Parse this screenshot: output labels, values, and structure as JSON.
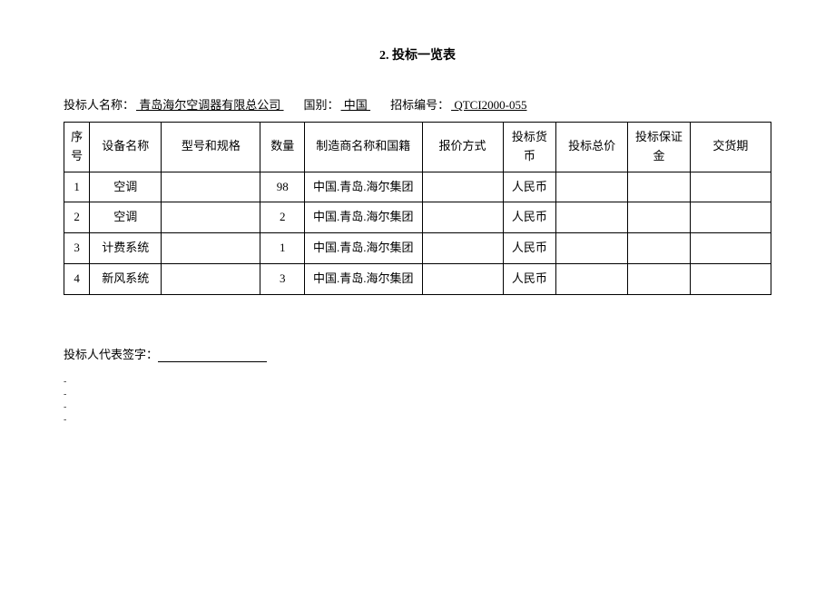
{
  "title": "2. 投标一览表",
  "info": {
    "bidder_label": "投标人名称：",
    "bidder_name": "  青岛海尔空调器有限总公司  ",
    "country_label": "国别：",
    "country": "  中国  ",
    "bidno_label": "招标编号：",
    "bidno": "  QTCI2000-055  "
  },
  "table": {
    "headers": {
      "seq": "序号",
      "name": "设备名称",
      "model": "型号和规格",
      "qty": "数量",
      "mfr": "制造商名称和国籍",
      "quote": "报价方式",
      "curr": "投标货币",
      "total": "投标总价",
      "deposit": "投标保证金",
      "delivery": "交货期"
    },
    "rows": [
      {
        "seq": "1",
        "name": "空调",
        "model": "",
        "qty": "98",
        "mfr": "中国.青岛.海尔集团",
        "quote": "",
        "curr": "人民币",
        "total": "",
        "deposit": "",
        "delivery": ""
      },
      {
        "seq": "2",
        "name": "空调",
        "model": "",
        "qty": "2",
        "mfr": "中国.青岛.海尔集团",
        "quote": "",
        "curr": "人民币",
        "total": "",
        "deposit": "",
        "delivery": ""
      },
      {
        "seq": "3",
        "name": "计费系统",
        "model": "",
        "qty": "1",
        "mfr": "中国.青岛.海尔集团",
        "quote": "",
        "curr": "人民币",
        "total": "",
        "deposit": "",
        "delivery": ""
      },
      {
        "seq": "4",
        "name": "新风系统",
        "model": "",
        "qty": "3",
        "mfr": "中国.青岛.海尔集团",
        "quote": "",
        "curr": "人民币",
        "total": "",
        "deposit": "",
        "delivery": ""
      }
    ]
  },
  "signature_label": "投标人代表签字：",
  "dashes": [
    "-",
    "-",
    "-",
    "-"
  ]
}
